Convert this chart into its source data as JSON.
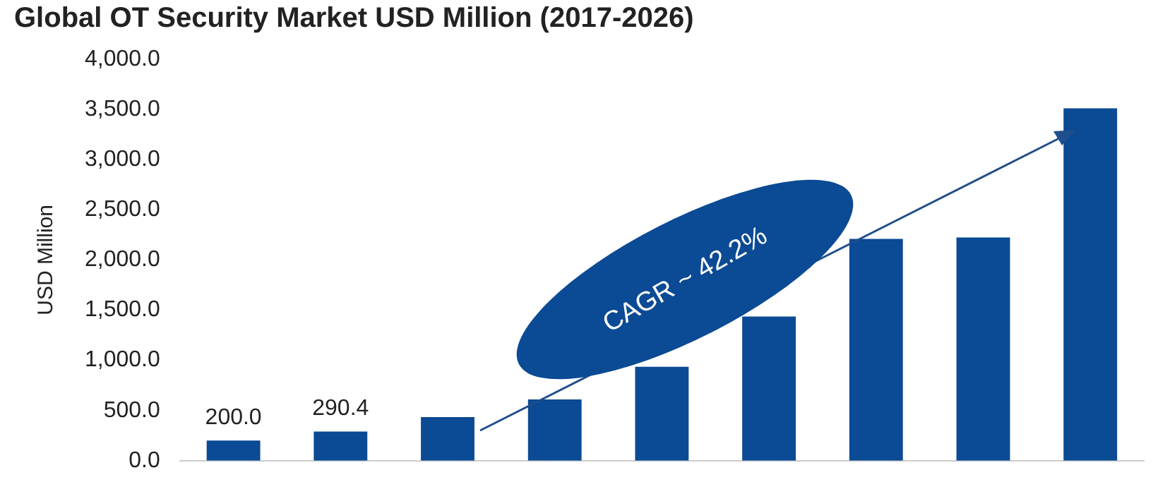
{
  "chart_data": {
    "type": "bar",
    "title": "Global OT Security Market USD Million (2017-2026)",
    "ylabel": "USD Million",
    "categories": [
      null,
      null,
      null,
      null,
      null,
      null,
      null,
      null,
      null
    ],
    "values": [
      200.0,
      290.4,
      434,
      610,
      936,
      1437,
      2210,
      2224,
      3512
    ],
    "value_labels": [
      "200.0",
      "290.4",
      null,
      null,
      null,
      null,
      null,
      null,
      null
    ],
    "color": "#0b4a94",
    "ylim": [
      0,
      4000
    ],
    "yticks": [
      {
        "value": 0,
        "label": "0.0"
      },
      {
        "value": 500,
        "label": "500.0"
      },
      {
        "value": 1000,
        "label": "1,000.0"
      },
      {
        "value": 1500,
        "label": "1,500.0"
      },
      {
        "value": 2000,
        "label": "2,000.0"
      },
      {
        "value": 2500,
        "label": "2,500.0"
      },
      {
        "value": 3000,
        "label": "3,000.0"
      },
      {
        "value": 3500,
        "label": "3,500.0"
      },
      {
        "value": 4000,
        "label": "4,000.0"
      }
    ],
    "grid": false,
    "legend": false,
    "annotations": [
      "CAGR ~ 42.2%"
    ]
  }
}
